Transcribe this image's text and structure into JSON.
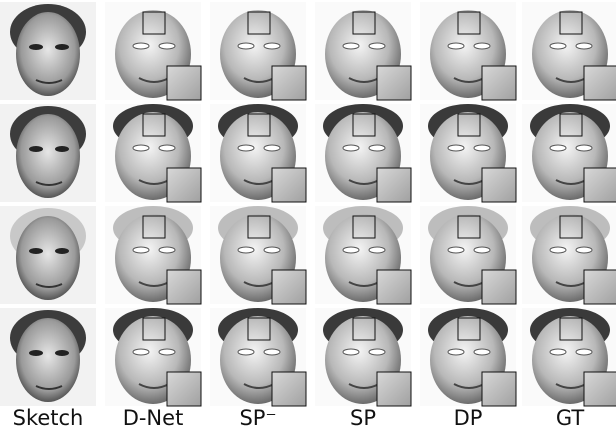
{
  "figure": {
    "columns": [
      "Sketch",
      "D-Net",
      "SP⁻",
      "SP",
      "DP",
      "GT"
    ]
  }
}
